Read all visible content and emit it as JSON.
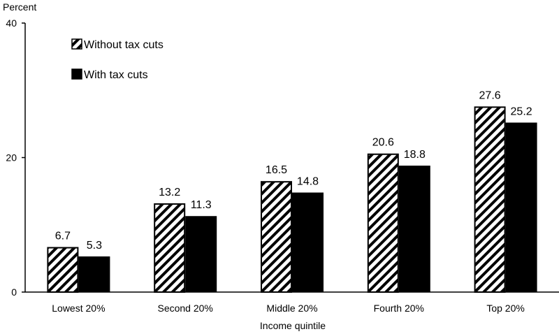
{
  "chart_data": {
    "type": "bar",
    "ylabel": "Percent",
    "xlabel": "Income quintile",
    "ylim": [
      0,
      40
    ],
    "yticks": [
      0,
      20,
      40
    ],
    "categories": [
      "Lowest 20%",
      "Second 20%",
      "Middle 20%",
      "Fourth 20%",
      "Top 20%"
    ],
    "series": [
      {
        "name": "Without tax cuts",
        "values": [
          6.7,
          13.2,
          16.5,
          20.6,
          27.6
        ],
        "fill": "hatched"
      },
      {
        "name": "With tax cuts",
        "values": [
          5.3,
          11.3,
          14.8,
          18.8,
          25.2
        ],
        "fill": "#000000"
      }
    ],
    "value_labels": [
      [
        "6.7",
        "13.2",
        "16.5",
        "20.6",
        "27.6"
      ],
      [
        "5.3",
        "11.3",
        "14.8",
        "18.8",
        "25.2"
      ]
    ],
    "legend_placement": "top-left",
    "grid": false,
    "colors": {
      "bar_outline": "#000000",
      "hatch": "#000000",
      "solid": "#000000",
      "background": "#ffffff"
    }
  }
}
